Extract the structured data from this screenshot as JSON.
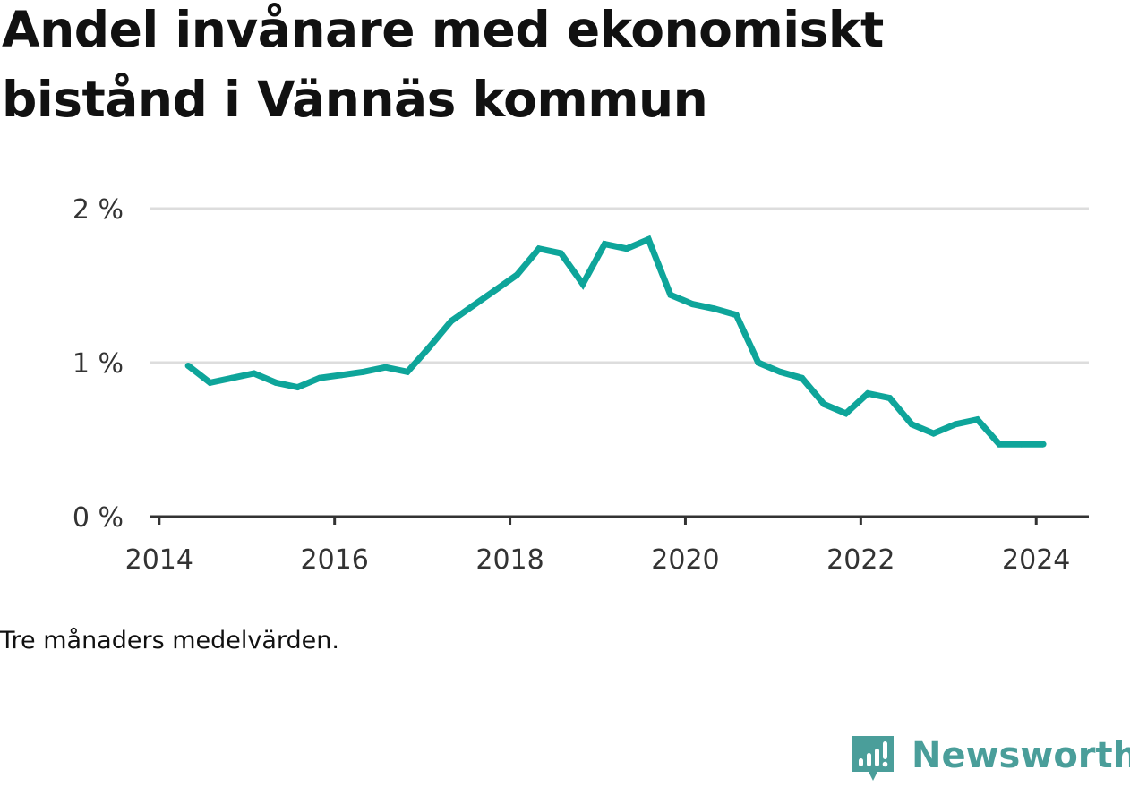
{
  "title_lines": [
    "Andel invånare med ekonomiskt",
    "bistånd i Vännäs kommun"
  ],
  "note": "Tre månaders medelvärden.",
  "brand": {
    "name": "Newsworthy",
    "icon": "newsworthy-logo-icon",
    "color": "#4a9e9a"
  },
  "colors": {
    "line": "#0ea59a",
    "grid": "#dddddd",
    "axis": "#333333",
    "text": "#111111"
  },
  "chart_data": {
    "type": "line",
    "title": "Andel invånare med ekonomiskt bistånd i Vännäs kommun",
    "xlabel": "",
    "ylabel": "",
    "xlim": [
      2013.9,
      2024.6
    ],
    "ylim": [
      0,
      2
    ],
    "x_ticks": [
      {
        "value": 2014,
        "label": "2014"
      },
      {
        "value": 2016,
        "label": "2016"
      },
      {
        "value": 2018,
        "label": "2018"
      },
      {
        "value": 2020,
        "label": "2020"
      },
      {
        "value": 2022,
        "label": "2022"
      },
      {
        "value": 2024,
        "label": "2024"
      }
    ],
    "y_ticks": [
      {
        "value": 0,
        "label": "0 %"
      },
      {
        "value": 1,
        "label": "1 %"
      },
      {
        "value": 2,
        "label": "2 %"
      }
    ],
    "grid": true,
    "legend": "none",
    "series": [
      {
        "x": [
          2014.33,
          2014.58,
          2014.83,
          2015.08,
          2015.33,
          2015.58,
          2015.83,
          2016.08,
          2016.33,
          2016.58,
          2016.83,
          2017.08,
          2017.33,
          2017.58,
          2017.83,
          2018.08,
          2018.33,
          2018.58,
          2018.83,
          2019.08,
          2019.33,
          2019.58,
          2019.83,
          2020.08,
          2020.33,
          2020.58,
          2020.83,
          2021.08,
          2021.33,
          2021.58,
          2021.83,
          2022.08,
          2022.33,
          2022.58,
          2022.83,
          2023.08,
          2023.33,
          2023.58,
          2023.83,
          2024.08
        ],
        "values": [
          0.98,
          0.87,
          0.9,
          0.93,
          0.87,
          0.84,
          0.9,
          0.92,
          0.94,
          0.97,
          0.94,
          1.1,
          1.27,
          1.37,
          1.47,
          1.57,
          1.74,
          1.71,
          1.51,
          1.77,
          1.74,
          1.8,
          1.44,
          1.38,
          1.35,
          1.31,
          1.0,
          0.94,
          0.9,
          0.73,
          0.67,
          0.8,
          0.77,
          0.6,
          0.54,
          0.6,
          0.63,
          0.47,
          0.47,
          0.47
        ]
      }
    ]
  }
}
